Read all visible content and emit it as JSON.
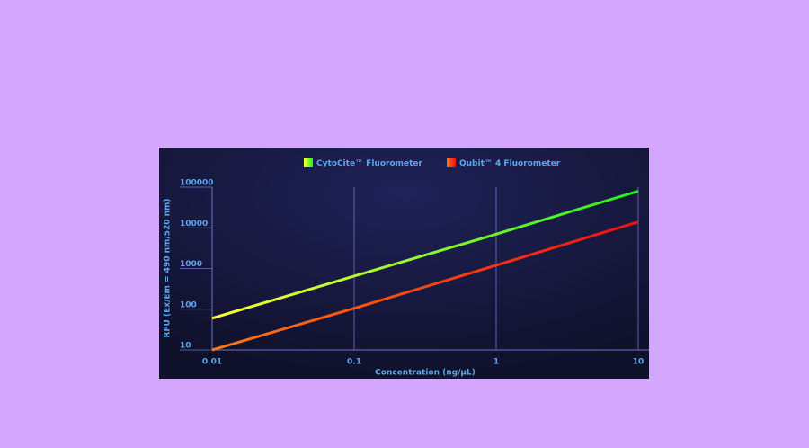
{
  "chart_data": {
    "type": "line",
    "x_label": "Concentration (ng/µL)",
    "y_label": "RFU (Ex/Em = 490 nm/520 nm)",
    "x": [
      0.01,
      0.1,
      1,
      10
    ],
    "series": [
      {
        "name": "CytoCite™ Fluorometer",
        "color": "#33ee22",
        "gradient": [
          "#ffff33",
          "#22ee22"
        ],
        "values": [
          60,
          650,
          7000,
          80000
        ]
      },
      {
        "name": "Qubit™ 4 Fluorometer",
        "color": "#ee1111",
        "gradient": [
          "#ff7711",
          "#ee1111"
        ],
        "values": [
          10,
          105,
          1200,
          14000
        ]
      }
    ],
    "x_log": true,
    "y_log": true,
    "xlim": [
      0.01,
      10
    ],
    "ylim": [
      10,
      100000
    ],
    "xticks": [
      0.01,
      0.1,
      1,
      10
    ],
    "yticks": [
      10,
      100,
      1000,
      10000,
      100000
    ],
    "grid": "x",
    "legend": "top"
  }
}
